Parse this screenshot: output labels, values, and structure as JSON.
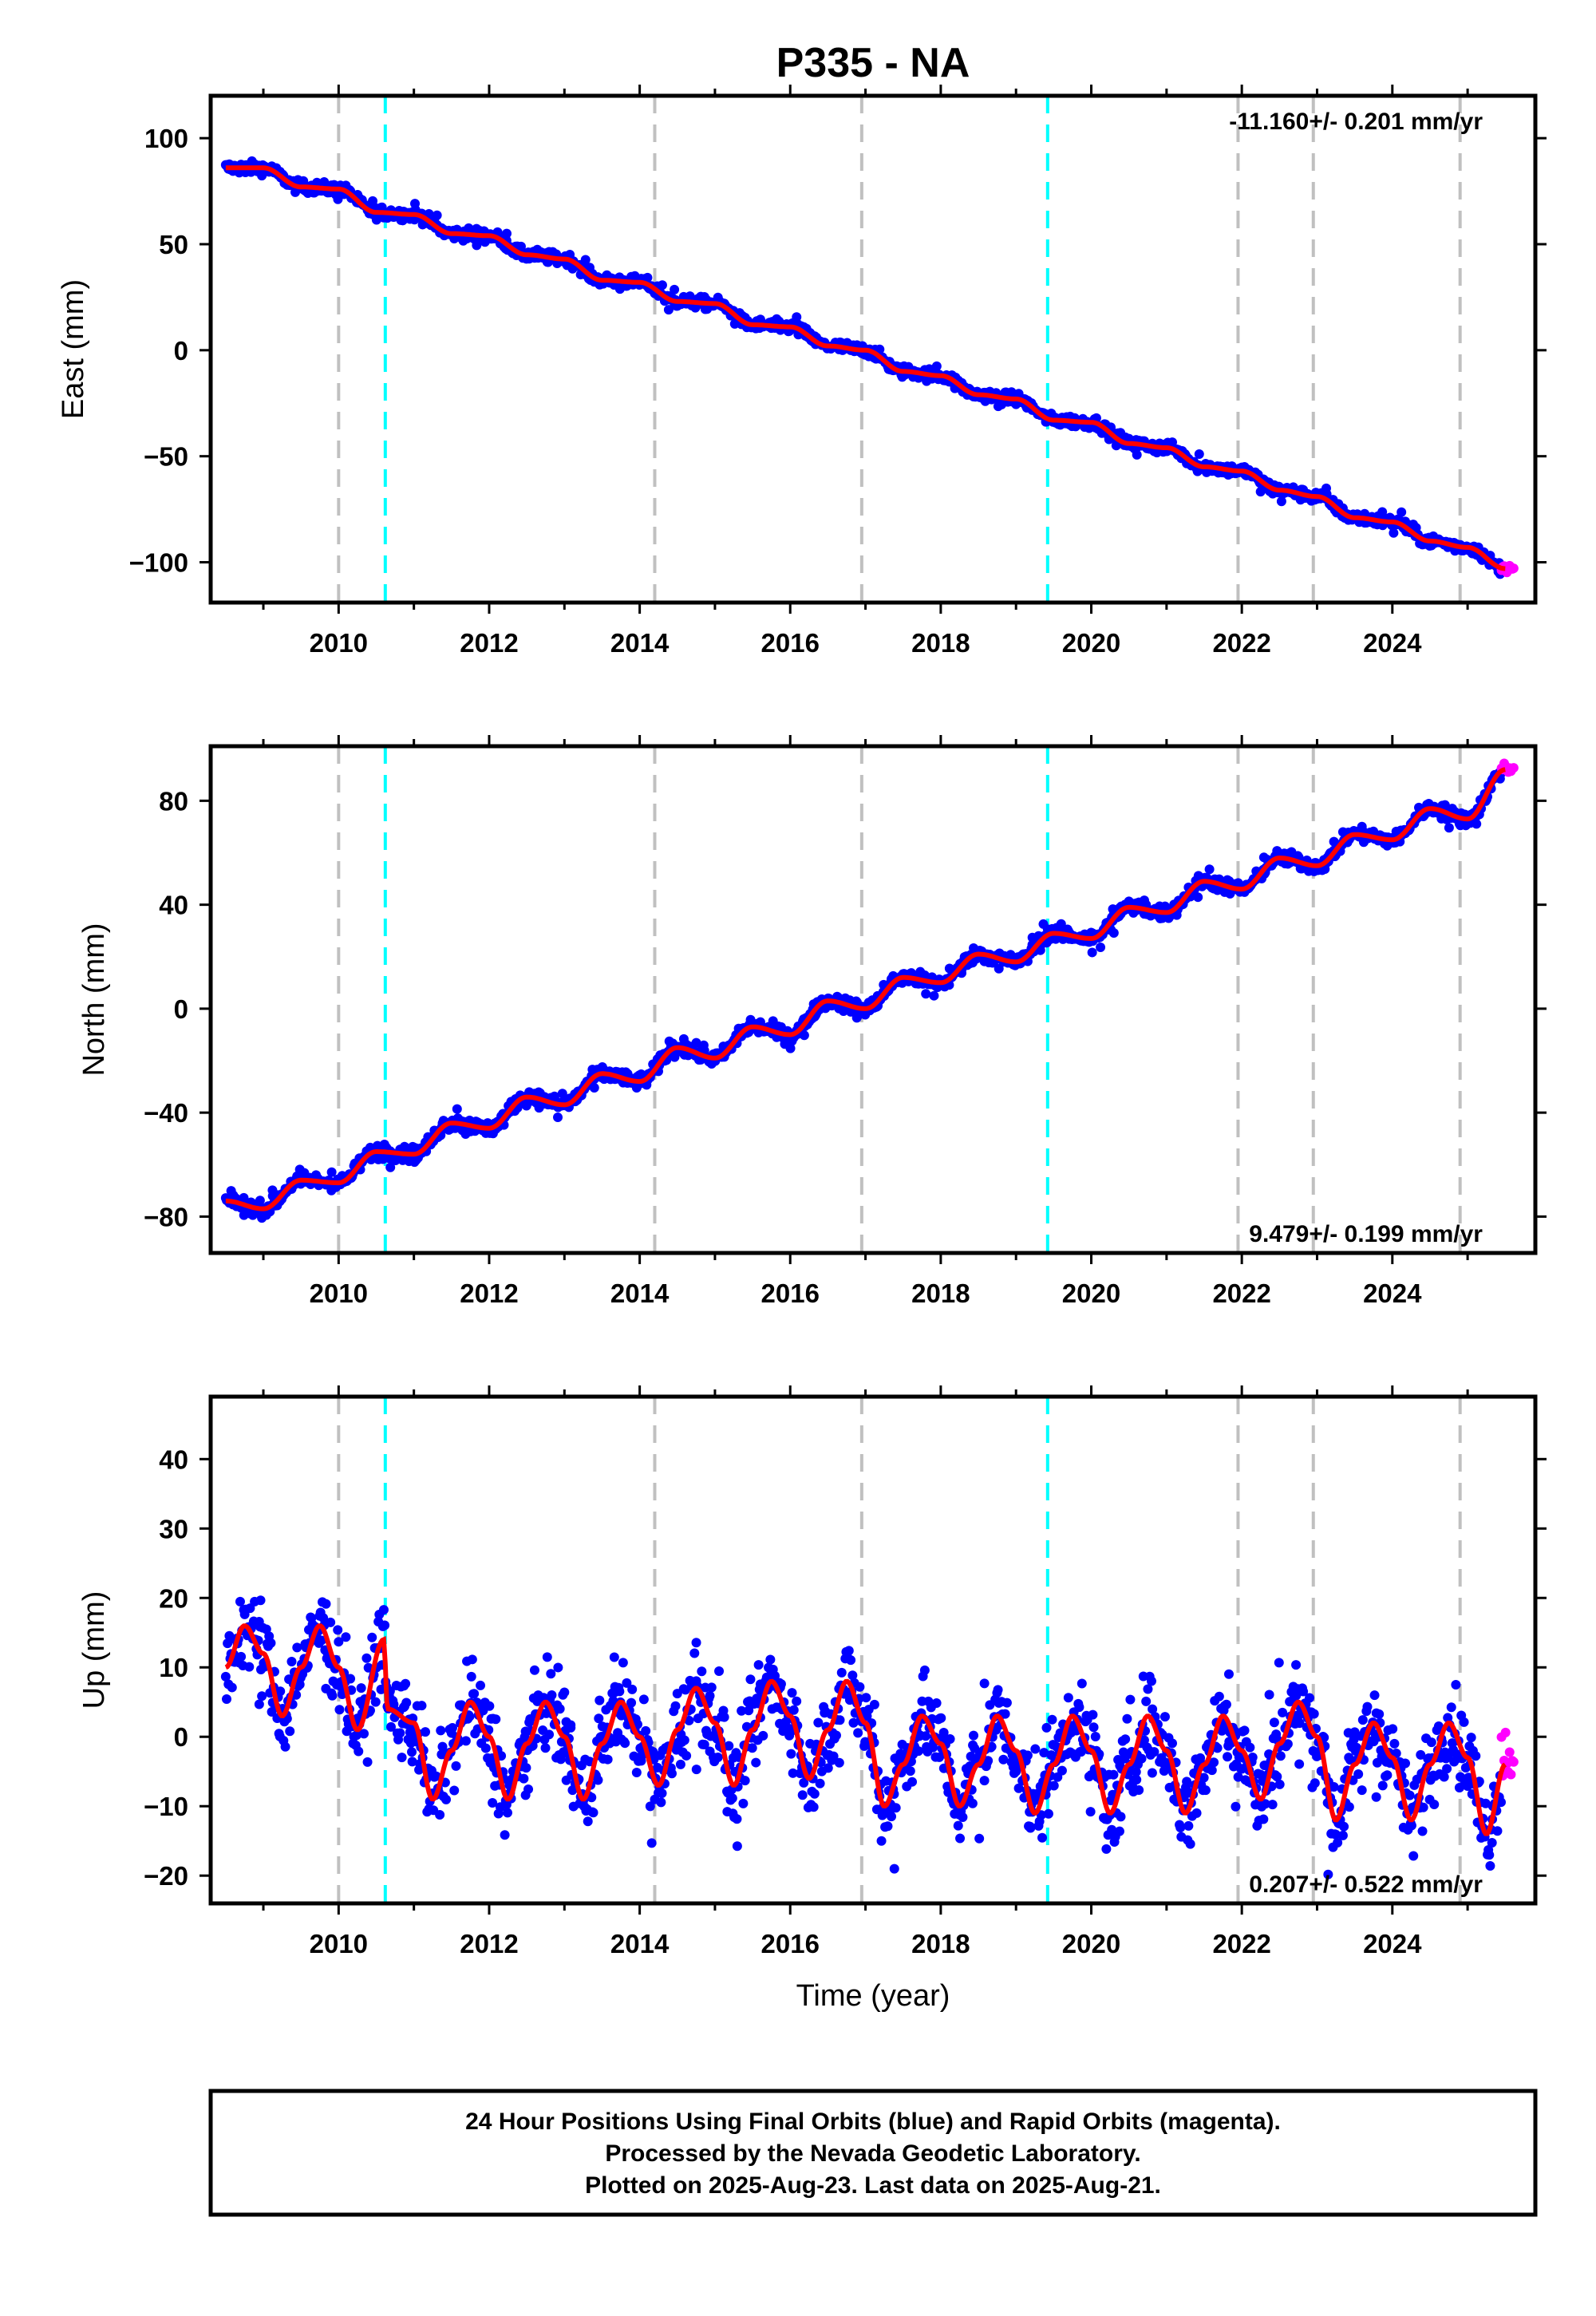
{
  "title": "P335 - NA",
  "colors": {
    "final_orbits": "#0000ff",
    "rapid_orbits": "#ff00ff",
    "model": "#ff0000",
    "equipment_change": "#c0c0c0",
    "event_line": "#00ffff"
  },
  "chart_data": [
    {
      "type": "scatter",
      "panel": "east",
      "ylabel": "East (mm)",
      "xlabel": "",
      "xlim": [
        2008.3,
        2025.9
      ],
      "ylim": [
        -119,
        120
      ],
      "x_ticks": [
        2010,
        2012,
        2014,
        2016,
        2018,
        2020,
        2022,
        2024
      ],
      "y_ticks": [
        100,
        50,
        0,
        -50,
        -100
      ],
      "y_tick_labels": [
        "100",
        "50",
        "0",
        "−50",
        "−100"
      ],
      "rate": "-11.160+/- 0.201 mm/yr",
      "rate_position": "top-right",
      "gray_lines": [
        2010.0,
        2014.2,
        2016.95,
        2021.95,
        2022.95,
        2024.9
      ],
      "cyan_lines": [
        2010.62,
        2019.42
      ],
      "series": [
        {
          "name": "",
          "kind": "model",
          "x": [
            2008.5,
            2009.0,
            2009.5,
            2010.0,
            2010.5,
            2011.0,
            2011.5,
            2012.0,
            2012.5,
            2013.0,
            2013.5,
            2014.0,
            2014.5,
            2015.0,
            2015.5,
            2016.0,
            2016.5,
            2017.0,
            2017.5,
            2018.0,
            2018.5,
            2019.0,
            2019.5,
            2020.0,
            2020.5,
            2021.0,
            2021.5,
            2022.0,
            2022.5,
            2023.0,
            2023.5,
            2024.0,
            2024.5,
            2025.0,
            2025.5
          ],
          "y": [
            86,
            86,
            77,
            76,
            65,
            64,
            55,
            54,
            45,
            43,
            33,
            32,
            23,
            22,
            12,
            11,
            2,
            0,
            -10,
            -12,
            -21,
            -23,
            -33,
            -34,
            -44,
            -46,
            -55,
            -57,
            -66,
            -69,
            -79,
            -81,
            -90,
            -93,
            -103
          ]
        }
      ]
    },
    {
      "type": "scatter",
      "panel": "north",
      "ylabel": "North (mm)",
      "xlabel": "",
      "xlim": [
        2008.3,
        2025.9
      ],
      "ylim": [
        -94,
        101
      ],
      "x_ticks": [
        2010,
        2012,
        2014,
        2016,
        2018,
        2020,
        2022,
        2024
      ],
      "y_ticks": [
        80,
        40,
        0,
        -40,
        -80
      ],
      "y_tick_labels": [
        "80",
        "40",
        "0",
        "−40",
        "−80"
      ],
      "rate": "9.479+/- 0.199 mm/yr",
      "rate_position": "bottom-right",
      "gray_lines": [
        2010.0,
        2014.2,
        2016.95,
        2021.95,
        2022.95,
        2024.9
      ],
      "cyan_lines": [
        2010.62,
        2019.42
      ],
      "series": [
        {
          "name": "",
          "kind": "model",
          "x": [
            2008.5,
            2009.0,
            2009.5,
            2010.0,
            2010.5,
            2011.0,
            2011.5,
            2012.0,
            2012.5,
            2013.0,
            2013.5,
            2014.0,
            2014.5,
            2015.0,
            2015.5,
            2016.0,
            2016.5,
            2017.0,
            2017.5,
            2018.0,
            2018.5,
            2019.0,
            2019.5,
            2020.0,
            2020.5,
            2021.0,
            2021.5,
            2022.0,
            2022.5,
            2023.0,
            2023.5,
            2024.0,
            2024.5,
            2025.0,
            2025.5
          ],
          "y": [
            -74,
            -77,
            -66,
            -67,
            -55,
            -56,
            -44,
            -46,
            -34,
            -37,
            -25,
            -28,
            -15,
            -19,
            -7,
            -10,
            3,
            0,
            12,
            10,
            21,
            18,
            29,
            27,
            39,
            37,
            49,
            46,
            58,
            55,
            67,
            65,
            77,
            73,
            92
          ]
        }
      ]
    },
    {
      "type": "scatter",
      "panel": "up",
      "ylabel": "Up (mm)",
      "xlabel": "Time (year)",
      "xlim": [
        2008.3,
        2025.9
      ],
      "ylim": [
        -24,
        49
      ],
      "x_ticks": [
        2010,
        2012,
        2014,
        2016,
        2018,
        2020,
        2022,
        2024
      ],
      "y_ticks": [
        40,
        30,
        20,
        10,
        0,
        -10,
        -20
      ],
      "y_tick_labels": [
        "40",
        "30",
        "20",
        "10",
        "0",
        "−10",
        "−20"
      ],
      "rate": "0.207+/- 0.522 mm/yr",
      "rate_position": "bottom-right",
      "gray_lines": [
        2010.0,
        2014.2,
        2016.95,
        2021.95,
        2022.95,
        2024.9
      ],
      "cyan_lines": [
        2010.62,
        2019.42
      ],
      "series": [
        {
          "name": "",
          "kind": "model",
          "x": [
            2008.5,
            2008.75,
            2009.0,
            2009.25,
            2009.5,
            2009.75,
            2010.0,
            2010.25,
            2010.6,
            2010.65,
            2011.0,
            2011.25,
            2011.5,
            2011.75,
            2012.0,
            2012.25,
            2012.5,
            2012.75,
            2013.0,
            2013.25,
            2013.5,
            2013.75,
            2014.0,
            2014.25,
            2014.5,
            2014.75,
            2015.0,
            2015.25,
            2015.5,
            2015.75,
            2016.0,
            2016.25,
            2016.5,
            2016.75,
            2017.0,
            2017.25,
            2017.5,
            2017.75,
            2018.0,
            2018.25,
            2018.5,
            2018.75,
            2019.0,
            2019.25,
            2019.5,
            2019.75,
            2020.0,
            2020.25,
            2020.5,
            2020.75,
            2021.0,
            2021.25,
            2021.5,
            2021.75,
            2022.0,
            2022.25,
            2022.5,
            2022.75,
            2023.0,
            2023.25,
            2023.5,
            2023.75,
            2024.0,
            2024.25,
            2024.5,
            2024.75,
            2025.0,
            2025.25,
            2025.5
          ],
          "y": [
            10,
            16,
            12,
            3,
            10,
            16,
            10,
            1,
            14,
            4,
            2,
            -9,
            -2,
            5,
            0,
            -9,
            -1,
            5,
            0,
            -9,
            -1,
            5,
            0,
            -7,
            1,
            7,
            2,
            -7,
            1,
            8,
            3,
            -6,
            1,
            8,
            2,
            -10,
            -4,
            3,
            -1,
            -10,
            -4,
            3,
            -2,
            -11,
            -4,
            3,
            -2,
            -11,
            -4,
            3,
            -2,
            -11,
            -4,
            3,
            -2,
            -9,
            -1,
            5,
            0,
            -12,
            -4,
            2,
            -3,
            -12,
            -4,
            2,
            -3,
            -14,
            -4
          ]
        }
      ]
    }
  ],
  "footer": {
    "line1": "24 Hour Positions Using Final Orbits (blue) and Rapid Orbits (magenta).",
    "line2": "Processed by the Nevada Geodetic Laboratory.",
    "line3": "Plotted on 2025-Aug-23. Last data on 2025-Aug-21."
  }
}
